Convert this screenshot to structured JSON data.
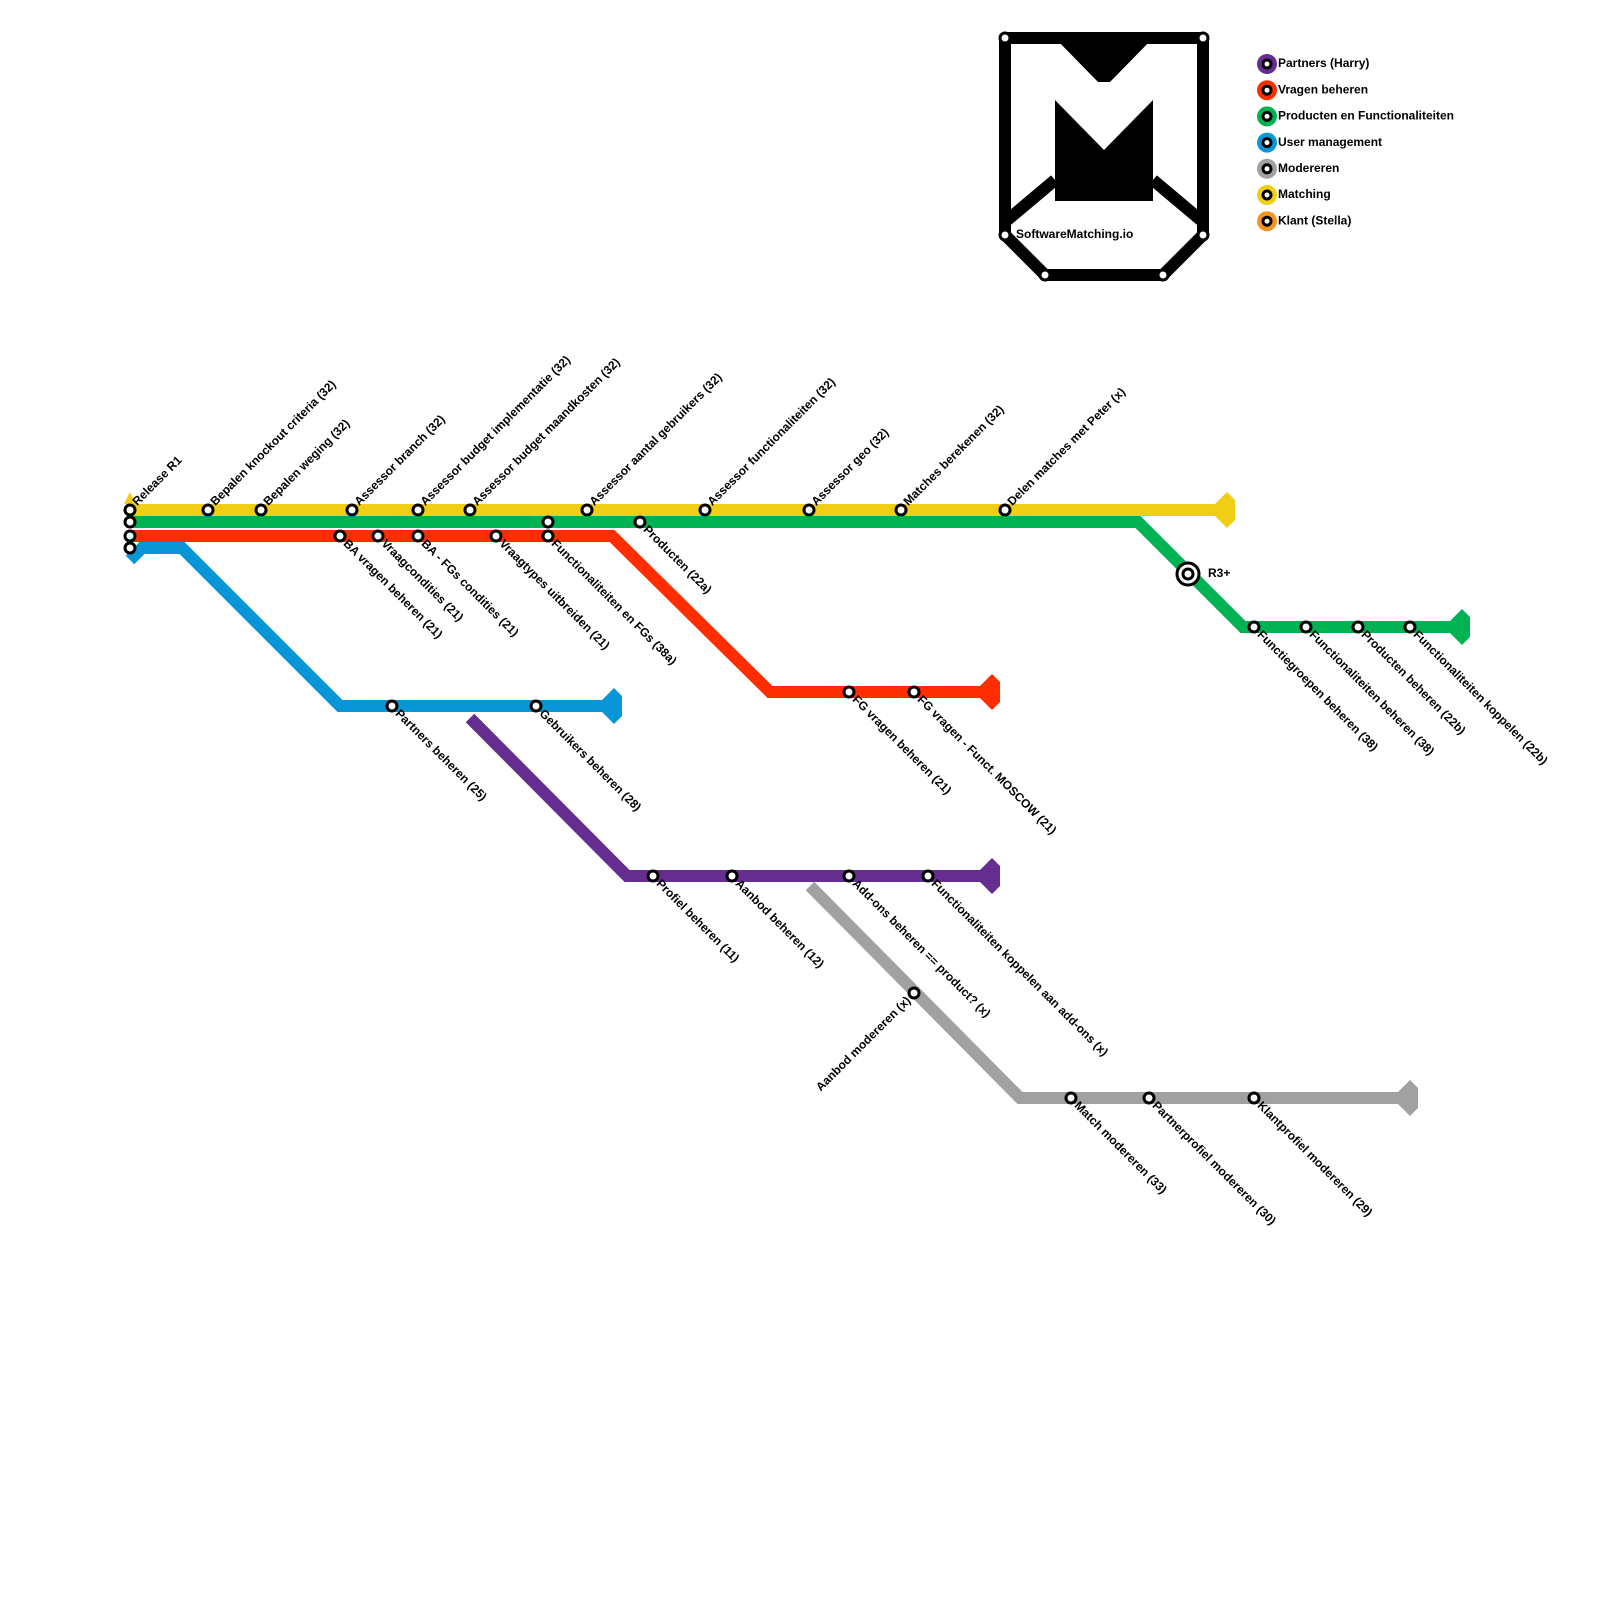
{
  "logo": {
    "text": "SoftwareMatching.io"
  },
  "legend": [
    "Partners (Harry)",
    "Vragen beheren",
    "Producten en Functionaliteiten",
    "User management",
    "Modereren",
    "Matching",
    "Klant (Stella)"
  ],
  "interchange": {
    "label": "R3+"
  },
  "stations": [
    "Release R1",
    "Bepalen knockout criteria (32)",
    "Bepalen weging (32)",
    "Assessor branch (32)",
    "Assessor budget implementatie (32)",
    "Assessor budget maandkosten (32)",
    "Assessor aantal gebruikers (32)",
    "Assessor functionaliteiten (32)",
    "Assessor geo (32)",
    "Matches berekenen (32)",
    "Delen matches met Peter (x)",
    "BA vragen beheren (21)",
    "Vraagcondities (21)",
    "BA - FGs condities (21)",
    "Vraagtypes uitbreiden (21)",
    "Functionaliteiten en FGs (38a)",
    "Producten (22a)",
    "Functiegroepen beheren (38)",
    "Functionaliteiten beheren (38)",
    "Producten beheren (22b)",
    "Functionaliteiten koppelen (22b)",
    "FG vragen beheren (21)",
    "FG vragen - Funct. MOSCOW (21)",
    "Partners beheren (25)",
    "Gebruikers beheren (28)",
    "Profiel beheren (11)",
    "Aanbod beheren (12)",
    "Add-ons beheren == product? (x)",
    "Functionaliteiten koppelen aan add-ons (x)",
    "Aanbod modereren (x)",
    "Match modereren (33)",
    "Partnerprofiel modereren (30)",
    "Klantprofiel modereren (29)"
  ]
}
